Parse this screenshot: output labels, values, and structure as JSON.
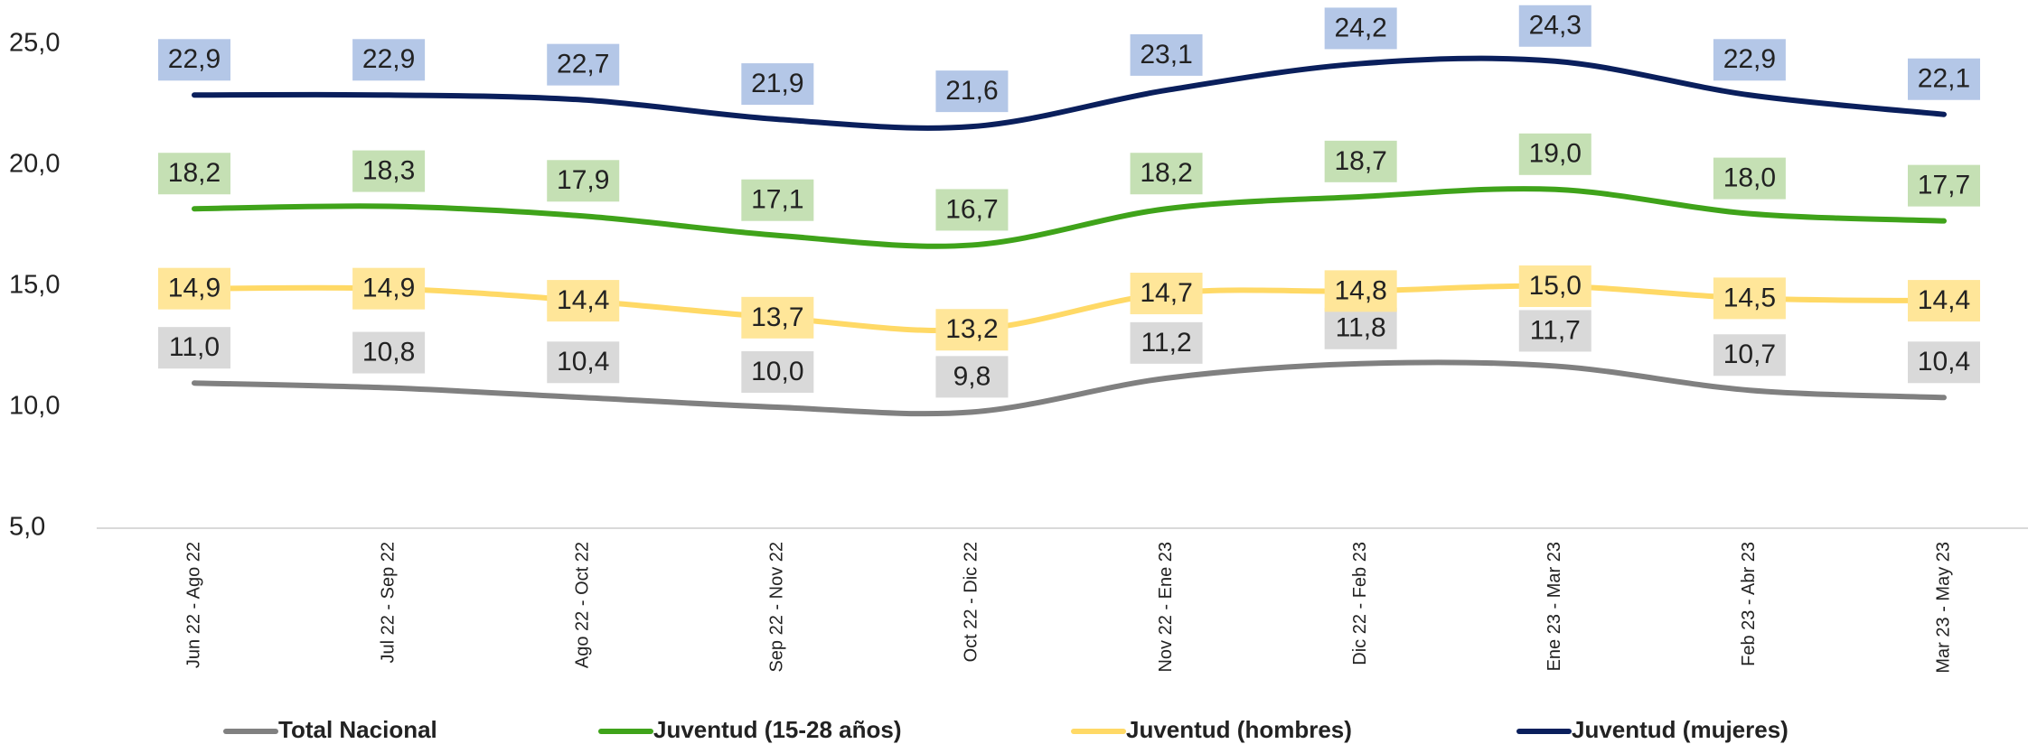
{
  "chart_data": {
    "type": "line",
    "categories": [
      "Jun 22 - Ago 22",
      "Jul 22 - Sep 22",
      "Ago 22 - Oct 22",
      "Sep 22 - Nov 22",
      "Oct 22 - Dic 22",
      "Nov 22 - Ene 23",
      "Dic 22 - Feb 23",
      "Ene 23 - Mar 23",
      "Feb 23 - Abr 23",
      "Mar 23 - May 23"
    ],
    "ylim": [
      5,
      25
    ],
    "yticks": [
      {
        "value": 5,
        "label": "5,0"
      },
      {
        "value": 10,
        "label": "10,0"
      },
      {
        "value": 15,
        "label": "15,0"
      },
      {
        "value": 20,
        "label": "20,0"
      },
      {
        "value": 25,
        "label": "25,0"
      }
    ],
    "legend": "bottom",
    "series": [
      {
        "name": "Total Nacional",
        "color": "#808080",
        "label_color": "#d9d9d9",
        "values": [
          11.0,
          10.8,
          10.4,
          10.0,
          9.8,
          11.2,
          11.8,
          11.7,
          10.7,
          10.4
        ],
        "value_labels": [
          "11,0",
          "10,8",
          "10,4",
          "10,0",
          "9,8",
          "11,2",
          "11,8",
          "11,7",
          "10,7",
          "10,4"
        ]
      },
      {
        "name": "Juventud (15-28 años)",
        "color": "#3fa31a",
        "label_color": "#c5e0b4",
        "values": [
          18.2,
          18.3,
          17.9,
          17.1,
          16.7,
          18.2,
          18.7,
          19.0,
          18.0,
          17.7
        ],
        "value_labels": [
          "18,2",
          "18,3",
          "17,9",
          "17,1",
          "16,7",
          "18,2",
          "18,7",
          "19,0",
          "18,0",
          "17,7"
        ]
      },
      {
        "name": "Juventud (hombres)",
        "color": "#ffd966",
        "label_color": "#ffe699",
        "values": [
          14.9,
          14.9,
          14.4,
          13.7,
          13.2,
          14.7,
          14.8,
          15.0,
          14.5,
          14.4
        ],
        "value_labels": [
          "14,9",
          "14,9",
          "14,4",
          "13,7",
          "13,2",
          "14,7",
          "14,8",
          "15,0",
          "14,5",
          "14,4"
        ]
      },
      {
        "name": "Juventud (mujeres)",
        "color": "#0a1f5c",
        "label_color": "#b4c7e7",
        "values": [
          22.9,
          22.9,
          22.7,
          21.9,
          21.6,
          23.1,
          24.2,
          24.3,
          22.9,
          22.1
        ],
        "value_labels": [
          "22,9",
          "22,9",
          "22,7",
          "21,9",
          "21,6",
          "23,1",
          "24,2",
          "24,3",
          "22,9",
          "22,1"
        ]
      }
    ]
  }
}
